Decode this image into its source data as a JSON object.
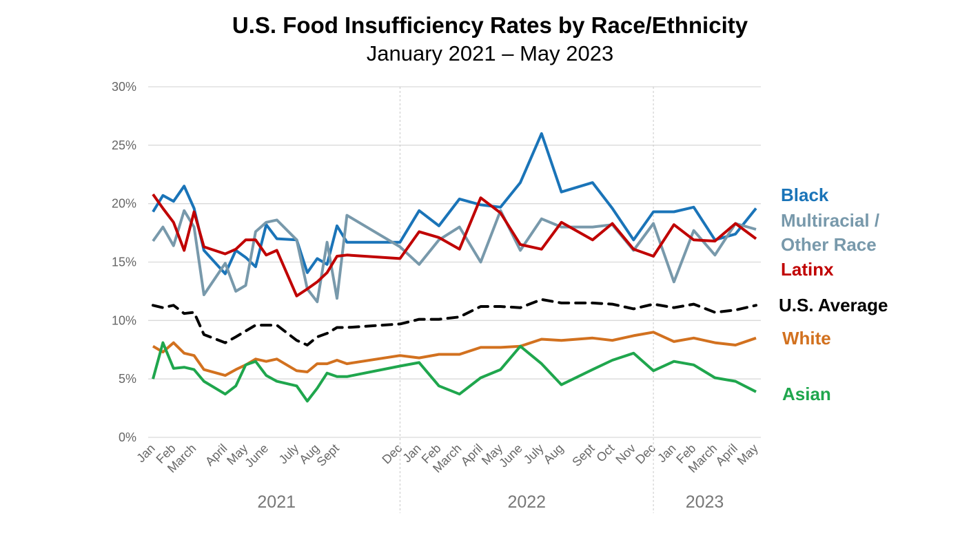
{
  "chart_data": {
    "type": "line",
    "title": "U.S. Food Insufficiency Rates by Race/Ethnicity",
    "subtitle": "January 2021 – May 2023",
    "xlabel": "",
    "ylabel": "",
    "ylim": [
      0,
      30
    ],
    "y_ticks": [
      0,
      5,
      10,
      15,
      20,
      25,
      30
    ],
    "y_tick_labels": [
      "0%",
      "5%",
      "10%",
      "15%",
      "20%",
      "25%",
      "30%"
    ],
    "grid": "horizontal",
    "legend_placement": "right (direct labels)",
    "x": [
      "2021-01-06",
      "2021-01-20",
      "2021-02-04",
      "2021-02-19",
      "2021-03-05",
      "2021-03-19",
      "2021-04-18",
      "2021-05-03",
      "2021-05-17",
      "2021-05-31",
      "2021-06-15",
      "2021-06-30",
      "2021-07-28",
      "2021-08-12",
      "2021-08-26",
      "2021-09-09",
      "2021-09-23",
      "2021-10-07",
      "2021-12-21",
      "2022-01-17",
      "2022-02-14",
      "2022-03-15",
      "2022-04-14",
      "2022-05-12",
      "2022-06-09",
      "2022-07-09",
      "2022-08-06",
      "2022-09-19",
      "2022-10-17",
      "2022-11-16",
      "2022-12-14",
      "2023-01-12",
      "2023-02-09",
      "2023-03-11",
      "2023-04-09",
      "2023-05-08"
    ],
    "x_ticks": [
      {
        "label": "Jan",
        "date": "2021-01-06"
      },
      {
        "label": "Feb",
        "date": "2021-02-04"
      },
      {
        "label": "March",
        "date": "2021-03-05"
      },
      {
        "label": "April",
        "date": "2021-04-18"
      },
      {
        "label": "May",
        "date": "2021-05-17"
      },
      {
        "label": "June",
        "date": "2021-06-15"
      },
      {
        "label": "July",
        "date": "2021-07-28"
      },
      {
        "label": "Aug",
        "date": "2021-08-26"
      },
      {
        "label": "Sept",
        "date": "2021-09-23"
      },
      {
        "label": "Dec",
        "date": "2021-12-21"
      },
      {
        "label": "Jan",
        "date": "2022-01-17"
      },
      {
        "label": "Feb",
        "date": "2022-02-14"
      },
      {
        "label": "March",
        "date": "2022-03-15"
      },
      {
        "label": "April",
        "date": "2022-04-14"
      },
      {
        "label": "May",
        "date": "2022-05-12"
      },
      {
        "label": "June",
        "date": "2022-06-09"
      },
      {
        "label": "July",
        "date": "2022-07-09"
      },
      {
        "label": "Aug",
        "date": "2022-08-06"
      },
      {
        "label": "Sept",
        "date": "2022-09-19"
      },
      {
        "label": "Oct",
        "date": "2022-10-17"
      },
      {
        "label": "Nov",
        "date": "2022-11-16"
      },
      {
        "label": "Dec",
        "date": "2022-12-14"
      },
      {
        "label": "Jan",
        "date": "2023-01-12"
      },
      {
        "label": "Feb",
        "date": "2023-02-09"
      },
      {
        "label": "March",
        "date": "2023-03-11"
      },
      {
        "label": "April",
        "date": "2023-04-09"
      },
      {
        "label": "May",
        "date": "2023-05-08"
      }
    ],
    "year_groups": [
      {
        "label": "2021",
        "start": "2021-01-06",
        "end": "2021-12-21"
      },
      {
        "label": "2022",
        "start": "2021-12-21",
        "end": "2022-12-14"
      },
      {
        "label": "2023",
        "start": "2022-12-14",
        "end": "2023-05-08"
      }
    ],
    "year_separators": [
      "2021-12-21",
      "2022-12-14"
    ],
    "series": [
      {
        "name": "Black",
        "color": "#1a74b8",
        "style": "solid",
        "values": [
          19.3,
          20.7,
          20.2,
          21.5,
          19.6,
          16.0,
          14.0,
          16.0,
          15.4,
          14.6,
          18.2,
          17.0,
          16.9,
          14.1,
          15.3,
          14.8,
          18.1,
          16.7,
          16.7,
          19.4,
          18.1,
          20.4,
          19.9,
          19.7,
          21.8,
          26.0,
          21.0,
          21.8,
          19.6,
          16.9,
          19.3,
          19.3,
          19.7,
          16.9,
          17.4,
          19.6
        ]
      },
      {
        "name": "Multiracial / Other Race",
        "color": "#7899ab",
        "style": "solid",
        "values": [
          16.8,
          18.0,
          16.4,
          19.4,
          18.0,
          12.2,
          14.9,
          12.5,
          13.0,
          17.6,
          18.4,
          18.6,
          16.9,
          12.7,
          11.6,
          16.7,
          11.9,
          19.0,
          16.3,
          14.8,
          16.9,
          18.0,
          15.0,
          19.4,
          16.0,
          18.7,
          18.0,
          18.0,
          18.2,
          16.0,
          18.3,
          13.3,
          17.7,
          15.6,
          18.3,
          17.8
        ]
      },
      {
        "name": "Latinx",
        "color": "#c00000",
        "style": "solid",
        "values": [
          20.8,
          19.6,
          18.4,
          16.0,
          19.3,
          16.3,
          15.7,
          16.1,
          16.9,
          16.9,
          15.6,
          16.0,
          12.1,
          12.7,
          13.3,
          14.1,
          15.5,
          15.6,
          15.3,
          17.6,
          17.1,
          16.1,
          20.5,
          19.2,
          16.5,
          16.1,
          18.4,
          16.9,
          18.3,
          16.1,
          15.5,
          18.2,
          16.9,
          16.8,
          18.3,
          17.0
        ]
      },
      {
        "name": "U.S. Average",
        "color": "#000000",
        "style": "dashed",
        "values": [
          11.3,
          11.1,
          11.3,
          10.6,
          10.7,
          8.8,
          8.1,
          8.6,
          9.1,
          9.6,
          9.6,
          9.6,
          8.3,
          7.9,
          8.6,
          8.9,
          9.4,
          9.4,
          9.7,
          10.1,
          10.1,
          10.3,
          11.2,
          11.2,
          11.1,
          11.8,
          11.5,
          11.5,
          11.4,
          11.0,
          11.4,
          11.1,
          11.4,
          10.7,
          10.9,
          11.3
        ]
      },
      {
        "name": "White",
        "color": "#d2711f",
        "style": "solid",
        "values": [
          7.8,
          7.3,
          8.1,
          7.2,
          7.0,
          5.8,
          5.3,
          5.8,
          6.2,
          6.7,
          6.5,
          6.7,
          5.7,
          5.6,
          6.3,
          6.3,
          6.6,
          6.3,
          7.0,
          6.8,
          7.1,
          7.1,
          7.7,
          7.7,
          7.8,
          8.4,
          8.3,
          8.5,
          8.3,
          8.7,
          9.0,
          8.2,
          8.5,
          8.1,
          7.9,
          8.5
        ]
      },
      {
        "name": "Asian",
        "color": "#1fa64d",
        "style": "solid",
        "values": [
          5.0,
          8.1,
          5.9,
          6.0,
          5.8,
          4.8,
          3.7,
          4.4,
          6.2,
          6.5,
          5.3,
          4.8,
          4.4,
          3.1,
          4.2,
          5.5,
          5.2,
          5.2,
          6.1,
          6.4,
          4.4,
          3.7,
          5.1,
          5.8,
          7.8,
          6.3,
          4.5,
          5.8,
          6.6,
          7.2,
          5.7,
          6.5,
          6.2,
          5.1,
          4.8,
          3.9
        ]
      }
    ]
  },
  "legend": {
    "black": "Black",
    "multiracial_1": "Multiracial /",
    "multiracial_2": "Other Race",
    "latinx": "Latinx",
    "average": "U.S. Average",
    "white": "White",
    "asian": "Asian"
  }
}
